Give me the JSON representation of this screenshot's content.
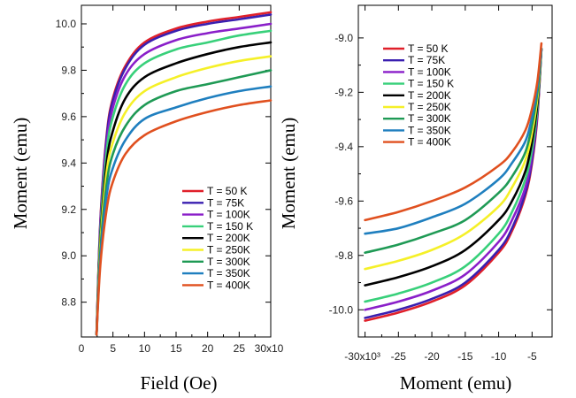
{
  "colors": [
    "#e0202a",
    "#3a1fb0",
    "#8a1fc9",
    "#38d07a",
    "#000000",
    "#f5f028",
    "#1f9a55",
    "#1f7fbf",
    "#e0501f"
  ],
  "chart_data": [
    {
      "type": "line",
      "id": "left",
      "title": "",
      "xlabel": "Field (Oe)",
      "ylabel": "Moment (emu)",
      "xlim": [
        0,
        30
      ],
      "ylim": [
        8.65,
        10.08
      ],
      "xticks": [
        "0",
        "5",
        "10",
        "15",
        "20",
        "25",
        "30x10"
      ],
      "yticks": [
        "8.8",
        "9.0",
        "9.2",
        "9.4",
        "9.6",
        "9.8",
        "10.0"
      ],
      "x": [
        2.4,
        3,
        4,
        5,
        7,
        10,
        15,
        20,
        25,
        30
      ],
      "legend_position": "bottom-right",
      "series": [
        {
          "name": "T = 50 K",
          "values": [
            8.66,
            9.15,
            9.52,
            9.68,
            9.82,
            9.92,
            9.98,
            10.01,
            10.03,
            10.05
          ]
        },
        {
          "name": "T = 75K",
          "values": [
            8.66,
            9.14,
            9.51,
            9.67,
            9.81,
            9.91,
            9.97,
            10.0,
            10.02,
            10.04
          ]
        },
        {
          "name": "T = 100K",
          "values": [
            8.66,
            9.12,
            9.48,
            9.64,
            9.78,
            9.87,
            9.93,
            9.96,
            9.98,
            10.0
          ]
        },
        {
          "name": "T = 150 K",
          "values": [
            8.66,
            9.1,
            9.45,
            9.6,
            9.74,
            9.83,
            9.89,
            9.92,
            9.95,
            9.97
          ]
        },
        {
          "name": "T = 200K",
          "values": [
            8.66,
            9.07,
            9.4,
            9.54,
            9.68,
            9.77,
            9.83,
            9.87,
            9.9,
            9.92
          ]
        },
        {
          "name": "T = 250K",
          "values": [
            8.66,
            9.05,
            9.36,
            9.49,
            9.62,
            9.71,
            9.77,
            9.81,
            9.84,
            9.86
          ]
        },
        {
          "name": "T = 300K",
          "values": [
            8.66,
            9.02,
            9.31,
            9.44,
            9.56,
            9.65,
            9.71,
            9.74,
            9.77,
            9.8
          ]
        },
        {
          "name": "T = 350K",
          "values": [
            8.66,
            8.99,
            9.26,
            9.38,
            9.5,
            9.59,
            9.64,
            9.68,
            9.71,
            9.73
          ]
        },
        {
          "name": "T = 400K",
          "values": [
            8.66,
            8.96,
            9.2,
            9.32,
            9.44,
            9.52,
            9.58,
            9.62,
            9.65,
            9.67
          ]
        }
      ]
    },
    {
      "type": "line",
      "id": "right",
      "title": "",
      "xlabel": "Moment (emu)",
      "ylabel": "Moment (emu)",
      "xlim": [
        -31,
        -2
      ],
      "ylim": [
        -10.1,
        -8.88
      ],
      "xticks": [
        "-30x10³",
        "-25",
        "-20",
        "-15",
        "-10",
        "-5"
      ],
      "yticks": [
        "-9.0",
        "-9.2",
        "-9.4",
        "-9.6",
        "-9.8",
        "-10.0"
      ],
      "x": [
        -30,
        -25,
        -20,
        -15,
        -10,
        -8,
        -6,
        -5,
        -4.2,
        -3.6
      ],
      "legend_position": "top-left",
      "series": [
        {
          "name": "T = 50 K",
          "values": [
            -10.04,
            -10.01,
            -9.97,
            -9.91,
            -9.79,
            -9.71,
            -9.58,
            -9.46,
            -9.29,
            -9.04
          ]
        },
        {
          "name": "T = 75K",
          "values": [
            -10.03,
            -10.0,
            -9.96,
            -9.9,
            -9.78,
            -9.7,
            -9.57,
            -9.45,
            -9.28,
            -9.04
          ]
        },
        {
          "name": "T = 100K",
          "values": [
            -10.0,
            -9.97,
            -9.93,
            -9.87,
            -9.75,
            -9.67,
            -9.55,
            -9.43,
            -9.27,
            -9.04
          ]
        },
        {
          "name": "T = 150 K",
          "values": [
            -9.97,
            -9.94,
            -9.9,
            -9.84,
            -9.72,
            -9.64,
            -9.52,
            -9.41,
            -9.26,
            -9.04
          ]
        },
        {
          "name": "T = 200K",
          "values": [
            -9.91,
            -9.88,
            -9.84,
            -9.78,
            -9.67,
            -9.6,
            -9.49,
            -9.38,
            -9.24,
            -9.04
          ]
        },
        {
          "name": "T = 250K",
          "values": [
            -9.85,
            -9.82,
            -9.78,
            -9.72,
            -9.62,
            -9.55,
            -9.45,
            -9.35,
            -9.22,
            -9.04
          ]
        },
        {
          "name": "T = 300K",
          "values": [
            -9.79,
            -9.76,
            -9.72,
            -9.67,
            -9.57,
            -9.51,
            -9.42,
            -9.32,
            -9.2,
            -9.04
          ]
        },
        {
          "name": "T = 350K",
          "values": [
            -9.72,
            -9.7,
            -9.66,
            -9.61,
            -9.52,
            -9.46,
            -9.38,
            -9.29,
            -9.18,
            -9.04
          ]
        },
        {
          "name": "T = 400K",
          "values": [
            -9.67,
            -9.64,
            -9.6,
            -9.55,
            -9.47,
            -9.42,
            -9.34,
            -9.26,
            -9.16,
            -9.02
          ]
        }
      ]
    }
  ]
}
